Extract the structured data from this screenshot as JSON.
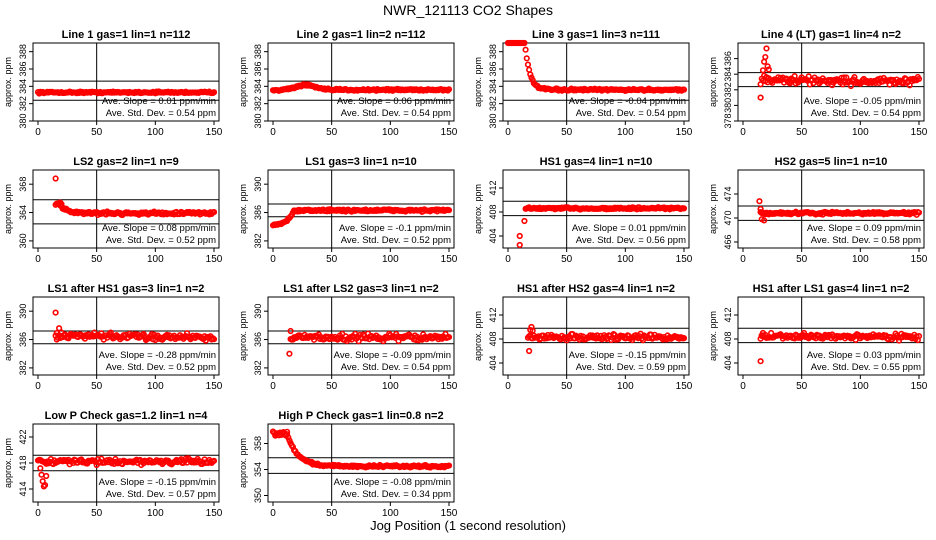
{
  "title": "NWR_121113  CO2 Shapes",
  "xlabel": "Jog Position (1 second resolution)",
  "ylabel": "approx. ppm",
  "slope_prefix": "Ave. Slope = ",
  "slope_unit": "ppm/min",
  "std_prefix": "Ave. Std. Dev. = ",
  "std_unit": "ppm",
  "colors": {
    "points": "#ff0000",
    "axes": "#000000"
  },
  "chart_data": [
    {
      "type": "scatter",
      "title": "Line 1 gas=1 lin=1 n=112",
      "xlim": [
        0,
        150
      ],
      "ylim": [
        380,
        389
      ],
      "yticks": [
        380,
        382,
        384,
        386,
        388
      ],
      "xticks": [
        0,
        50,
        100,
        150
      ],
      "hlines": [
        384.6,
        382.4
      ],
      "vline": 50,
      "slope": "0.01",
      "std": "0.54",
      "shape": {
        "base": 383.3,
        "noise": 0.08,
        "trend": 0.0,
        "start": 0,
        "end": 150,
        "spikes": []
      }
    },
    {
      "type": "scatter",
      "title": "Line 2 gas=1 lin=2 n=112",
      "xlim": [
        0,
        150
      ],
      "ylim": [
        380,
        389
      ],
      "yticks": [
        380,
        382,
        384,
        386,
        388
      ],
      "xticks": [
        0,
        50,
        100,
        150
      ],
      "hlines": [
        384.6,
        382.4
      ],
      "vline": 50,
      "slope": "0.06",
      "std": "0.54",
      "shape": {
        "base": 383.6,
        "noise": 0.1,
        "trend": 0.0,
        "start": 0,
        "end": 150,
        "bump": {
          "x": [
            10,
            45
          ],
          "y": 0.6
        },
        "spikes": []
      }
    },
    {
      "type": "scatter",
      "title": "Line 3 gas=1 lin=3 n=111",
      "xlim": [
        0,
        150
      ],
      "ylim": [
        380,
        389
      ],
      "yticks": [
        380,
        382,
        384,
        386,
        388
      ],
      "xticks": [
        0,
        50,
        100,
        150
      ],
      "hlines": [
        384.6,
        382.4
      ],
      "vline": 50,
      "slope": "-0.04",
      "std": "0.54",
      "shape": {
        "base": 383.6,
        "noise": 0.1,
        "trend": 0.0,
        "start": 0,
        "end": 150,
        "decay": {
          "amp": 6,
          "tau": 4,
          "from": 14
        },
        "spikes": []
      }
    },
    {
      "type": "scatter",
      "title": "Line 4 (LT) gas=1 lin=4 n=2",
      "xlim": [
        0,
        150
      ],
      "ylim": [
        378,
        388
      ],
      "yticks": [
        378,
        380,
        382,
        384,
        386
      ],
      "xticks": [
        0,
        50,
        100,
        150
      ],
      "hlines": [
        384.2,
        382.4
      ],
      "vline": 50,
      "slope": "-0.05",
      "std": "0.54",
      "shape": {
        "base": 383.3,
        "noise": 0.45,
        "trend": -0.002,
        "start": 15,
        "end": 150,
        "spikes": [
          [
            15,
            381.0
          ],
          [
            17,
            384.5
          ],
          [
            18,
            385.6
          ],
          [
            19,
            386.2
          ],
          [
            20,
            387.3
          ],
          [
            21,
            385.0
          ],
          [
            22,
            384.6
          ]
        ]
      }
    },
    {
      "type": "scatter",
      "title": "LS2 gas=2 lin=1 n=9",
      "xlim": [
        0,
        150
      ],
      "ylim": [
        359,
        370
      ],
      "yticks": [
        360,
        364,
        368
      ],
      "xticks": [
        0,
        50,
        100,
        150
      ],
      "hlines": [
        365.8,
        362.4
      ],
      "vline": 50,
      "slope": "0.08",
      "std": "0.52",
      "shape": {
        "base": 363.9,
        "noise": 0.18,
        "trend": 0.0,
        "start": 15,
        "end": 150,
        "decay": {
          "amp": 1.4,
          "tau": 6,
          "from": 18
        },
        "spikes": [
          [
            15,
            368.8
          ],
          [
            19,
            365.4
          ],
          [
            20,
            365.2
          ],
          [
            22,
            364.5
          ]
        ]
      }
    },
    {
      "type": "scatter",
      "title": "LS1 gas=3 lin=1 n=10",
      "xlim": [
        0,
        150
      ],
      "ylim": [
        381,
        392
      ],
      "yticks": [
        382,
        386,
        390
      ],
      "xticks": [
        0,
        50,
        100,
        150
      ],
      "hlines": [
        387.2,
        385.4
      ],
      "vline": 50,
      "slope": "-0.1",
      "std": "0.52",
      "shape": {
        "base": 386.3,
        "noise": 0.15,
        "trend": 0.0,
        "start": 0,
        "end": 150,
        "rise": {
          "from": 0,
          "to": 18,
          "low": 384.3
        },
        "spikes": []
      }
    },
    {
      "type": "scatter",
      "title": "HS1 gas=4 lin=1 n=10",
      "xlim": [
        0,
        150
      ],
      "ylim": [
        402,
        415
      ],
      "yticks": [
        404,
        408,
        412
      ],
      "xticks": [
        0,
        50,
        100,
        150
      ],
      "hlines": [
        409.8,
        407.4
      ],
      "vline": 50,
      "slope": "0.01",
      "std": "0.56",
      "shape": {
        "base": 408.6,
        "noise": 0.15,
        "trend": 0.0,
        "start": 15,
        "end": 150,
        "spikes": [
          [
            10,
            404.0
          ],
          [
            10,
            402.5
          ],
          [
            14,
            406.5
          ]
        ]
      }
    },
    {
      "type": "scatter",
      "title": "HS2 gas=5 lin=1 n=10",
      "xlim": [
        0,
        150
      ],
      "ylim": [
        465,
        478
      ],
      "yticks": [
        466,
        470,
        474
      ],
      "xticks": [
        0,
        50,
        100,
        150
      ],
      "hlines": [
        472.0,
        469.6
      ],
      "vline": 50,
      "slope": "0.09",
      "std": "0.58",
      "shape": {
        "base": 470.8,
        "noise": 0.18,
        "trend": 0.0,
        "start": 15,
        "end": 150,
        "spikes": [
          [
            14,
            472.8
          ],
          [
            15,
            471.5
          ],
          [
            16,
            469.8
          ],
          [
            18,
            469.6
          ]
        ]
      }
    },
    {
      "type": "scatter",
      "title": "LS1 after HS1 gas=3 lin=1 n=2",
      "xlim": [
        0,
        150
      ],
      "ylim": [
        381,
        392
      ],
      "yticks": [
        382,
        386,
        390
      ],
      "xticks": [
        0,
        50,
        100,
        150
      ],
      "hlines": [
        387.2,
        385.4
      ],
      "vline": 50,
      "slope": "-0.28",
      "std": "0.52",
      "shape": {
        "base": 386.5,
        "noise": 0.4,
        "trend": -0.001,
        "start": 15,
        "end": 150,
        "spikes": [
          [
            15,
            389.8
          ],
          [
            16,
            386.0
          ],
          [
            18,
            387.6
          ],
          [
            20,
            387.0
          ]
        ]
      }
    },
    {
      "type": "scatter",
      "title": "LS1 after LS2 gas=3 lin=1 n=2",
      "xlim": [
        0,
        150
      ],
      "ylim": [
        381,
        392
      ],
      "yticks": [
        382,
        386,
        390
      ],
      "xticks": [
        0,
        50,
        100,
        150
      ],
      "hlines": [
        387.2,
        385.4
      ],
      "vline": 50,
      "slope": "-0.09",
      "std": "0.54",
      "shape": {
        "base": 386.3,
        "noise": 0.4,
        "trend": 0.0,
        "start": 15,
        "end": 150,
        "spikes": [
          [
            14,
            384.0
          ],
          [
            15,
            387.2
          ],
          [
            16,
            386.0
          ]
        ]
      }
    },
    {
      "type": "scatter",
      "title": "HS1 after HS2 gas=4 lin=1 n=2",
      "xlim": [
        0,
        150
      ],
      "ylim": [
        402,
        415
      ],
      "yticks": [
        404,
        408,
        412
      ],
      "xticks": [
        0,
        50,
        100,
        150
      ],
      "hlines": [
        409.8,
        407.4
      ],
      "vline": 50,
      "slope": "-0.15",
      "std": "0.59",
      "shape": {
        "base": 408.3,
        "noise": 0.4,
        "trend": 0.0,
        "start": 17,
        "end": 150,
        "spikes": [
          [
            18,
            406.0
          ],
          [
            19,
            409.5
          ],
          [
            20,
            410.0
          ],
          [
            21,
            409.4
          ]
        ]
      }
    },
    {
      "type": "scatter",
      "title": "HS1 after LS1 gas=4 lin=1 n=2",
      "xlim": [
        0,
        150
      ],
      "ylim": [
        402,
        415
      ],
      "yticks": [
        404,
        408,
        412
      ],
      "xticks": [
        0,
        50,
        100,
        150
      ],
      "hlines": [
        409.8,
        407.4
      ],
      "vline": 50,
      "slope": "0.03",
      "std": "0.55",
      "shape": {
        "base": 408.4,
        "noise": 0.4,
        "trend": 0.0,
        "start": 15,
        "end": 150,
        "spikes": [
          [
            15,
            404.3
          ],
          [
            16,
            408.6
          ],
          [
            17,
            409.0
          ]
        ]
      }
    },
    {
      "type": "scatter",
      "title": "Low P Check gas=1.2 lin=1 n=4",
      "xlim": [
        0,
        150
      ],
      "ylim": [
        412,
        424
      ],
      "yticks": [
        414,
        418,
        422
      ],
      "xticks": [
        0,
        50,
        100,
        150
      ],
      "hlines": [
        419.2,
        416.8
      ],
      "vline": 50,
      "slope": "-0.15",
      "std": "0.57",
      "shape": {
        "base": 418.2,
        "noise": 0.35,
        "trend": 0.0,
        "start": 0,
        "end": 150,
        "spikes": [
          [
            2,
            417.2
          ],
          [
            3,
            416.2
          ],
          [
            4,
            415.2
          ],
          [
            5,
            414.4
          ],
          [
            6,
            414.6
          ],
          [
            7,
            416.0
          ]
        ]
      }
    },
    {
      "type": "scatter",
      "title": "High P Check gas=1 lin=0.8 n=2",
      "xlim": [
        0,
        150
      ],
      "ylim": [
        349,
        361
      ],
      "yticks": [
        350,
        354,
        358
      ],
      "xticks": [
        0,
        50,
        100,
        150
      ],
      "hlines": [
        355.8,
        353.4
      ],
      "vline": 50,
      "slope": "-0.08",
      "std": "0.34",
      "shape": {
        "base": 354.5,
        "noise": 0.15,
        "trend": 0.0,
        "start": 0,
        "end": 150,
        "decay": {
          "amp": 5,
          "tau": 9,
          "from": 12
        },
        "spikes": [
          [
            2,
            359.2
          ],
          [
            12,
            359.8
          ]
        ]
      }
    }
  ]
}
